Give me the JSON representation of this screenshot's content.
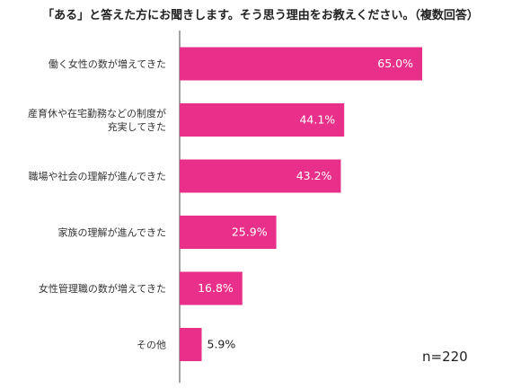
{
  "chart_data": {
    "type": "bar",
    "orientation": "horizontal",
    "title": "「ある」と答えた方にお聞きします。そう思う理由をお教えください。（複数回答）",
    "categories": [
      [
        "働く女性の数が増えてきた"
      ],
      [
        "産育休や在宅勤務などの制度が",
        "充実してきた"
      ],
      [
        "職場や社会の理解が進んできた"
      ],
      [
        "家族の理解が進んできた"
      ],
      [
        "女性管理職の数が増えてきた"
      ],
      [
        "その他"
      ]
    ],
    "values": [
      65.0,
      44.1,
      43.2,
      25.9,
      16.8,
      5.9
    ],
    "value_labels": [
      "65.0%",
      "44.1%",
      "43.2%",
      "25.9%",
      "16.8%",
      "5.9%"
    ],
    "xlim": [
      0,
      100
    ],
    "grid": false,
    "bar_color": "#e8308a",
    "note": "n=220"
  }
}
